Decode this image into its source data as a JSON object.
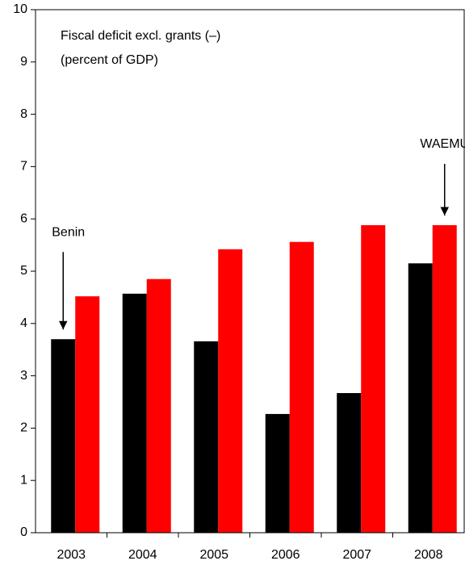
{
  "chart_data": {
    "type": "bar",
    "title": "Fiscal deficit excl. grants (–)",
    "subtitle": "(percent of GDP)",
    "categories": [
      "2003",
      "2004",
      "2005",
      "2006",
      "2007",
      "2008"
    ],
    "series": [
      {
        "name": "Benin",
        "color": "#000000",
        "values": [
          3.7,
          4.57,
          3.66,
          2.27,
          2.67,
          5.15
        ]
      },
      {
        "name": "WAEMU",
        "color": "#ff0000",
        "values": [
          4.52,
          4.85,
          5.42,
          5.56,
          5.88,
          5.88
        ]
      }
    ],
    "ylim": [
      0,
      10
    ],
    "yticks": [
      0,
      1,
      2,
      3,
      4,
      5,
      6,
      7,
      8,
      9,
      10
    ],
    "grid": false
  }
}
